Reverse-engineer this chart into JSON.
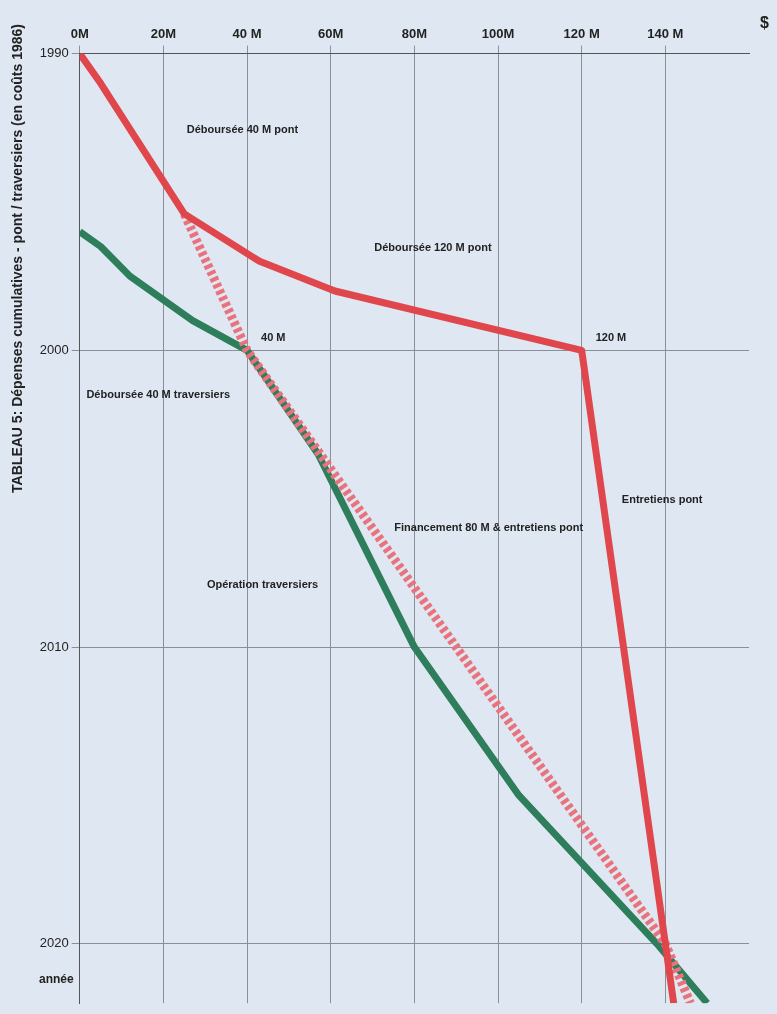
{
  "chart_data": {
    "type": "line",
    "orientation": "horizontal",
    "title": "TABLEAU 5: Dépenses cumulatives - pont / traversiers (en coûts 1986)",
    "xlabel": "$",
    "ylabel": "année",
    "xlim": [
      0,
      160
    ],
    "xticks": [
      {
        "value": 0,
        "label": "0M"
      },
      {
        "value": 20,
        "label": "20M"
      },
      {
        "value": 40,
        "label": "40 M"
      },
      {
        "value": 60,
        "label": "60M"
      },
      {
        "value": 80,
        "label": "80M"
      },
      {
        "value": 100,
        "label": "100M"
      },
      {
        "value": 120,
        "label": "120 M"
      },
      {
        "value": 140,
        "label": "140 M"
      }
    ],
    "ylim": [
      2022,
      1990
    ],
    "yticks": [
      1990,
      2000,
      2010,
      2020
    ],
    "grid": true,
    "legend": false,
    "marker": "none",
    "series": [
      {
        "color": "#e0474c",
        "line_style": "solid",
        "x": [
          1990,
          1991,
          1995.4,
          1997,
          1998,
          2000,
          2020,
          2022
        ],
        "values": [
          0,
          5,
          25,
          43,
          61,
          120,
          140,
          142
        ]
      },
      {
        "color": "#e9737d",
        "line_style": "dashed",
        "x": [
          1995.4,
          2000,
          2020,
          2022
        ],
        "values": [
          25,
          40,
          140,
          146
        ]
      },
      {
        "color": "#2e7d5b",
        "line_style": "solid",
        "x": [
          1996,
          1996.5,
          1997.5,
          1999,
          2000,
          2003.5,
          2010,
          2015,
          2020,
          2022
        ],
        "values": [
          0,
          5,
          12,
          27,
          40,
          57,
          80,
          105,
          138,
          150
        ]
      }
    ],
    "annotations": [
      "Déboursée 120 M pont",
      "Entretiens pont",
      "Déboursée 40 M pont",
      "Déboursée 40 M traversiers",
      "Financement 80 M & entretiens pont",
      "Opération traversiers",
      {
        "text": "120 M",
        "y": 2000,
        "x": 120
      },
      {
        "text": "40 M",
        "y": 2000,
        "x": 40
      }
    ]
  }
}
